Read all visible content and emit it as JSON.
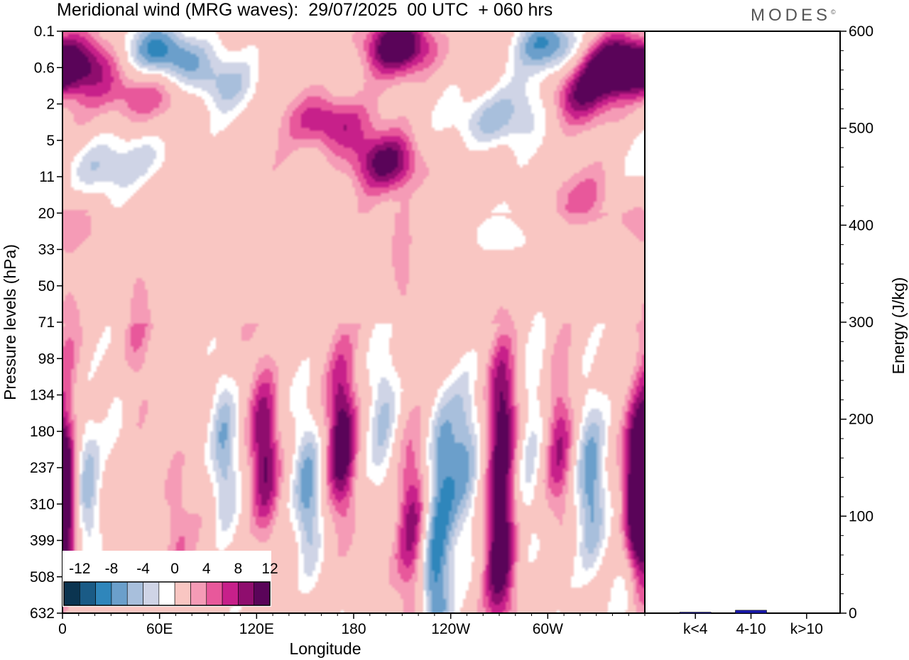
{
  "header": {
    "title": "Meridional wind (MRG waves):  29/07/2025  00 UTC  + 060 hrs",
    "brand": "MODES",
    "brand_mark": "©"
  },
  "chart_data": [
    {
      "type": "heatmap",
      "title": "Meridional wind (MRG waves):  29/07/2025  00 UTC  + 060 hrs",
      "xlabel": "Longitude",
      "ylabel": "Pressure levels (hPa)",
      "x_ticks": [
        "0",
        "60E",
        "120E",
        "180",
        "120W",
        "60W"
      ],
      "x_tick_values": [
        0,
        60,
        120,
        180,
        240,
        300
      ],
      "xlim": [
        0,
        360
      ],
      "y_ticks": [
        "0.1",
        "0.6",
        "2",
        "5",
        "11",
        "20",
        "33",
        "50",
        "71",
        "98",
        "134",
        "180",
        "237",
        "310",
        "399",
        "508",
        "632"
      ],
      "colorbar": {
        "labels": [
          "-12",
          "-8",
          "-4",
          "0",
          "4",
          "8",
          "12"
        ],
        "levels": [
          -14,
          -12,
          -10,
          -8,
          -6,
          -4,
          -2,
          2,
          4,
          6,
          8,
          10,
          12,
          14
        ],
        "colors": [
          "#0b3450",
          "#1a5b86",
          "#2f86bb",
          "#6b9fcb",
          "#a8bfdc",
          "#cfd4e6",
          "#ffffff",
          "#f9c6c2",
          "#f59bb6",
          "#e8589b",
          "#c7208a",
          "#8f0d6e",
          "#5a0459"
        ]
      },
      "blobs": [
        {
          "lon": 60,
          "lev": 0.5,
          "v": -9
        },
        {
          "lon": 75,
          "lev": 1.0,
          "v": -6
        },
        {
          "lon": 100,
          "lev": 1.5,
          "v": -5
        },
        {
          "lon": 55,
          "lev": 3.5,
          "v": -4
        },
        {
          "lon": 20,
          "lev": 3.8,
          "v": -5
        },
        {
          "lon": 15,
          "lev": 0.8,
          "v": 5
        },
        {
          "lon": 40,
          "lev": 1.8,
          "v": 5
        },
        {
          "lon": 62,
          "lev": 1.5,
          "v": 4
        },
        {
          "lon": 165,
          "lev": 2.5,
          "v": 9
        },
        {
          "lon": 208,
          "lev": 0.4,
          "v": 13
        },
        {
          "lon": 200,
          "lev": 3.6,
          "v": 10
        },
        {
          "lon": 300,
          "lev": 0.4,
          "v": -10
        },
        {
          "lon": 265,
          "lev": 2.5,
          "v": -7
        },
        {
          "lon": 290,
          "lev": 1.8,
          "v": -5
        },
        {
          "lon": 340,
          "lev": 1.0,
          "v": 13
        },
        {
          "lon": 315,
          "lev": 1.8,
          "v": 9
        },
        {
          "lon": 320,
          "lev": 4.6,
          "v": 4
        },
        {
          "lon": 0,
          "lev": 1.0,
          "v": 7
        },
        {
          "lon": 210,
          "lev": 6.2,
          "v": 3
        },
        {
          "lon": 270,
          "lev": 5.6,
          "v": -3
        },
        {
          "lon": 5,
          "lev": 5.3,
          "v": 3
        },
        {
          "lon": 47,
          "lev": 8.2,
          "v": 3
        },
        {
          "lon": 5,
          "lev": 9.0,
          "v": 4
        },
        {
          "lon": 15,
          "lev": 12.8,
          "v": -8
        },
        {
          "lon": 33,
          "lev": 10.5,
          "v": -3
        },
        {
          "lon": 70,
          "lev": 13.5,
          "v": 4
        },
        {
          "lon": 100,
          "lev": 11.5,
          "v": -9
        },
        {
          "lon": 125,
          "lev": 11.6,
          "v": 12
        },
        {
          "lon": 152,
          "lev": 12.8,
          "v": -10
        },
        {
          "lon": 173,
          "lev": 11.3,
          "v": 12
        },
        {
          "lon": 198,
          "lev": 10.5,
          "v": -5
        },
        {
          "lon": 216,
          "lev": 13.5,
          "v": 8
        },
        {
          "lon": 235,
          "lev": 12.0,
          "v": -9
        },
        {
          "lon": 248,
          "lev": 11.5,
          "v": -7
        },
        {
          "lon": 230,
          "lev": 15.2,
          "v": -10
        },
        {
          "lon": 272,
          "lev": 10.5,
          "v": 12
        },
        {
          "lon": 270,
          "lev": 14.2,
          "v": 12
        },
        {
          "lon": 287,
          "lev": 12.2,
          "v": -5
        },
        {
          "lon": 295,
          "lev": 9.5,
          "v": -4
        },
        {
          "lon": 307,
          "lev": 11.5,
          "v": 8
        },
        {
          "lon": 327,
          "lev": 12.6,
          "v": -9
        },
        {
          "lon": 357,
          "lev": 12.6,
          "v": 13
        },
        {
          "lon": 0,
          "lev": 13.0,
          "v": 10
        },
        {
          "lon": 345,
          "lev": 15.5,
          "v": -4
        }
      ]
    },
    {
      "type": "bar",
      "categories": [
        "k<4",
        "4-10",
        "k>10"
      ],
      "values": [
        1,
        3,
        0
      ],
      "ylabel": "Energy (J/kg)",
      "ylim": [
        0,
        600
      ],
      "y_ticks": [
        "0",
        "100",
        "200",
        "300",
        "400",
        "500",
        "600"
      ],
      "colors": {
        "bar": "#1a1ab0"
      }
    }
  ]
}
